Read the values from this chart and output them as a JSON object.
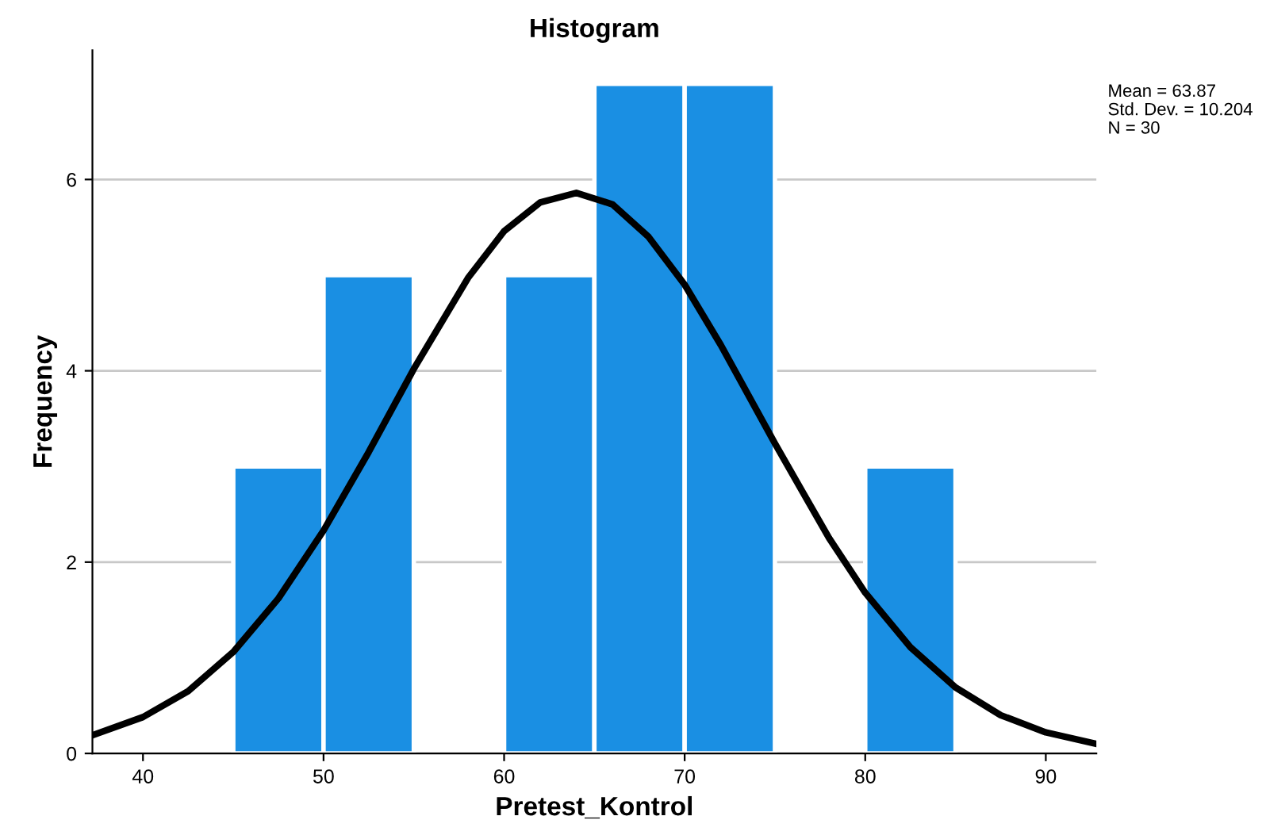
{
  "chart_data": {
    "type": "histogram",
    "title": "Histogram",
    "xlabel": "Pretest_Kontrol",
    "ylabel": "Frequency",
    "series": [
      {
        "bins": [
          45,
          50,
          55,
          60,
          65,
          70,
          75,
          80,
          85
        ],
        "values": [
          3,
          5,
          0,
          5,
          7,
          7,
          0,
          3
        ],
        "color": "#1a8fe3"
      },
      {
        "type": "line",
        "color": "#000000",
        "x": [
          37.2,
          40,
          42.5,
          45,
          47.5,
          50,
          52.5,
          55,
          58,
          60,
          62,
          64,
          66,
          68,
          70,
          72,
          75,
          78,
          80,
          82.5,
          85,
          87.5,
          90,
          92.8
        ],
        "values": [
          0.19,
          0.38,
          0.65,
          1.06,
          1.62,
          2.33,
          3.15,
          4.02,
          4.97,
          5.46,
          5.76,
          5.86,
          5.74,
          5.4,
          4.9,
          4.27,
          3.24,
          2.25,
          1.68,
          1.11,
          0.69,
          0.4,
          0.22,
          0.1
        ]
      }
    ],
    "xlim": [
      37.2,
      92.8
    ],
    "ylim": [
      0,
      7.35
    ],
    "xticks": [
      40,
      50,
      60,
      70,
      80,
      90
    ],
    "yticks": [
      0,
      2,
      4,
      6
    ],
    "grid": "y",
    "marker": "none",
    "line_style": "solid",
    "annotations": [
      "Mean = 63.87",
      "Std. Dev. = 10.204",
      "N = 30"
    ]
  }
}
